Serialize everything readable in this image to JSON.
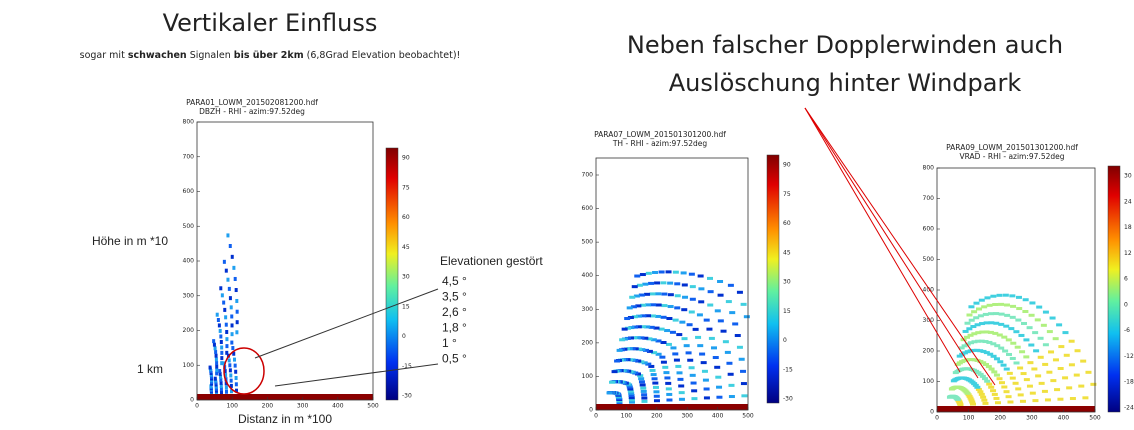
{
  "left_heading": {
    "title": "Vertikaler Einfluss",
    "subtitle_parts": [
      "sogar mit ",
      "schwachen",
      " Signalen ",
      "bis über 2km",
      " (6,8Grad Elevation beobachtet)!"
    ]
  },
  "right_heading": {
    "line1": "Neben falscher Dopplerwinden auch",
    "line2": "Auslöschung hinter Windpark"
  },
  "panels": [
    {
      "file": "PARA01_LOWM_201502081200.hdf",
      "product": "DBZH - RHI - azim:97.52deg",
      "yticks": [
        0,
        100,
        200,
        300,
        400,
        500,
        600,
        700,
        800
      ],
      "xticks": [
        0,
        100,
        200,
        300,
        400,
        500
      ],
      "cbar_ticks": [
        90,
        75,
        60,
        45,
        30,
        15,
        0,
        -15,
        -30
      ],
      "y_label": "Höhe in m *10",
      "x_label": "Distanz in m *100",
      "marker": "1 km"
    },
    {
      "file": "PARA07_LOWM_201501301200.hdf",
      "product": "TH - RHI - azim:97.52deg",
      "yticks": [
        0,
        100,
        200,
        300,
        400,
        500,
        600,
        700
      ],
      "xticks": [
        0,
        100,
        200,
        300,
        400,
        500
      ],
      "cbar_ticks": [
        90,
        75,
        60,
        45,
        30,
        15,
        0,
        -15,
        -30
      ]
    },
    {
      "file": "PARA09_LOWM_201501301200.hdf",
      "product": "VRAD - RHI - azim:97.52deg",
      "yticks": [
        0,
        100,
        200,
        300,
        400,
        500,
        600,
        700,
        800
      ],
      "xticks": [
        0,
        100,
        200,
        300,
        400,
        500
      ],
      "cbar_ticks": [
        30,
        24,
        18,
        12,
        6,
        0,
        -6,
        -12,
        -18,
        -24
      ]
    }
  ],
  "annotation": {
    "title": "Elevationen gestört",
    "elevations": [
      "4,5 °",
      "3,5 °",
      "2,6 °",
      "1,8 °",
      "1 °",
      "0,5 °"
    ]
  }
}
